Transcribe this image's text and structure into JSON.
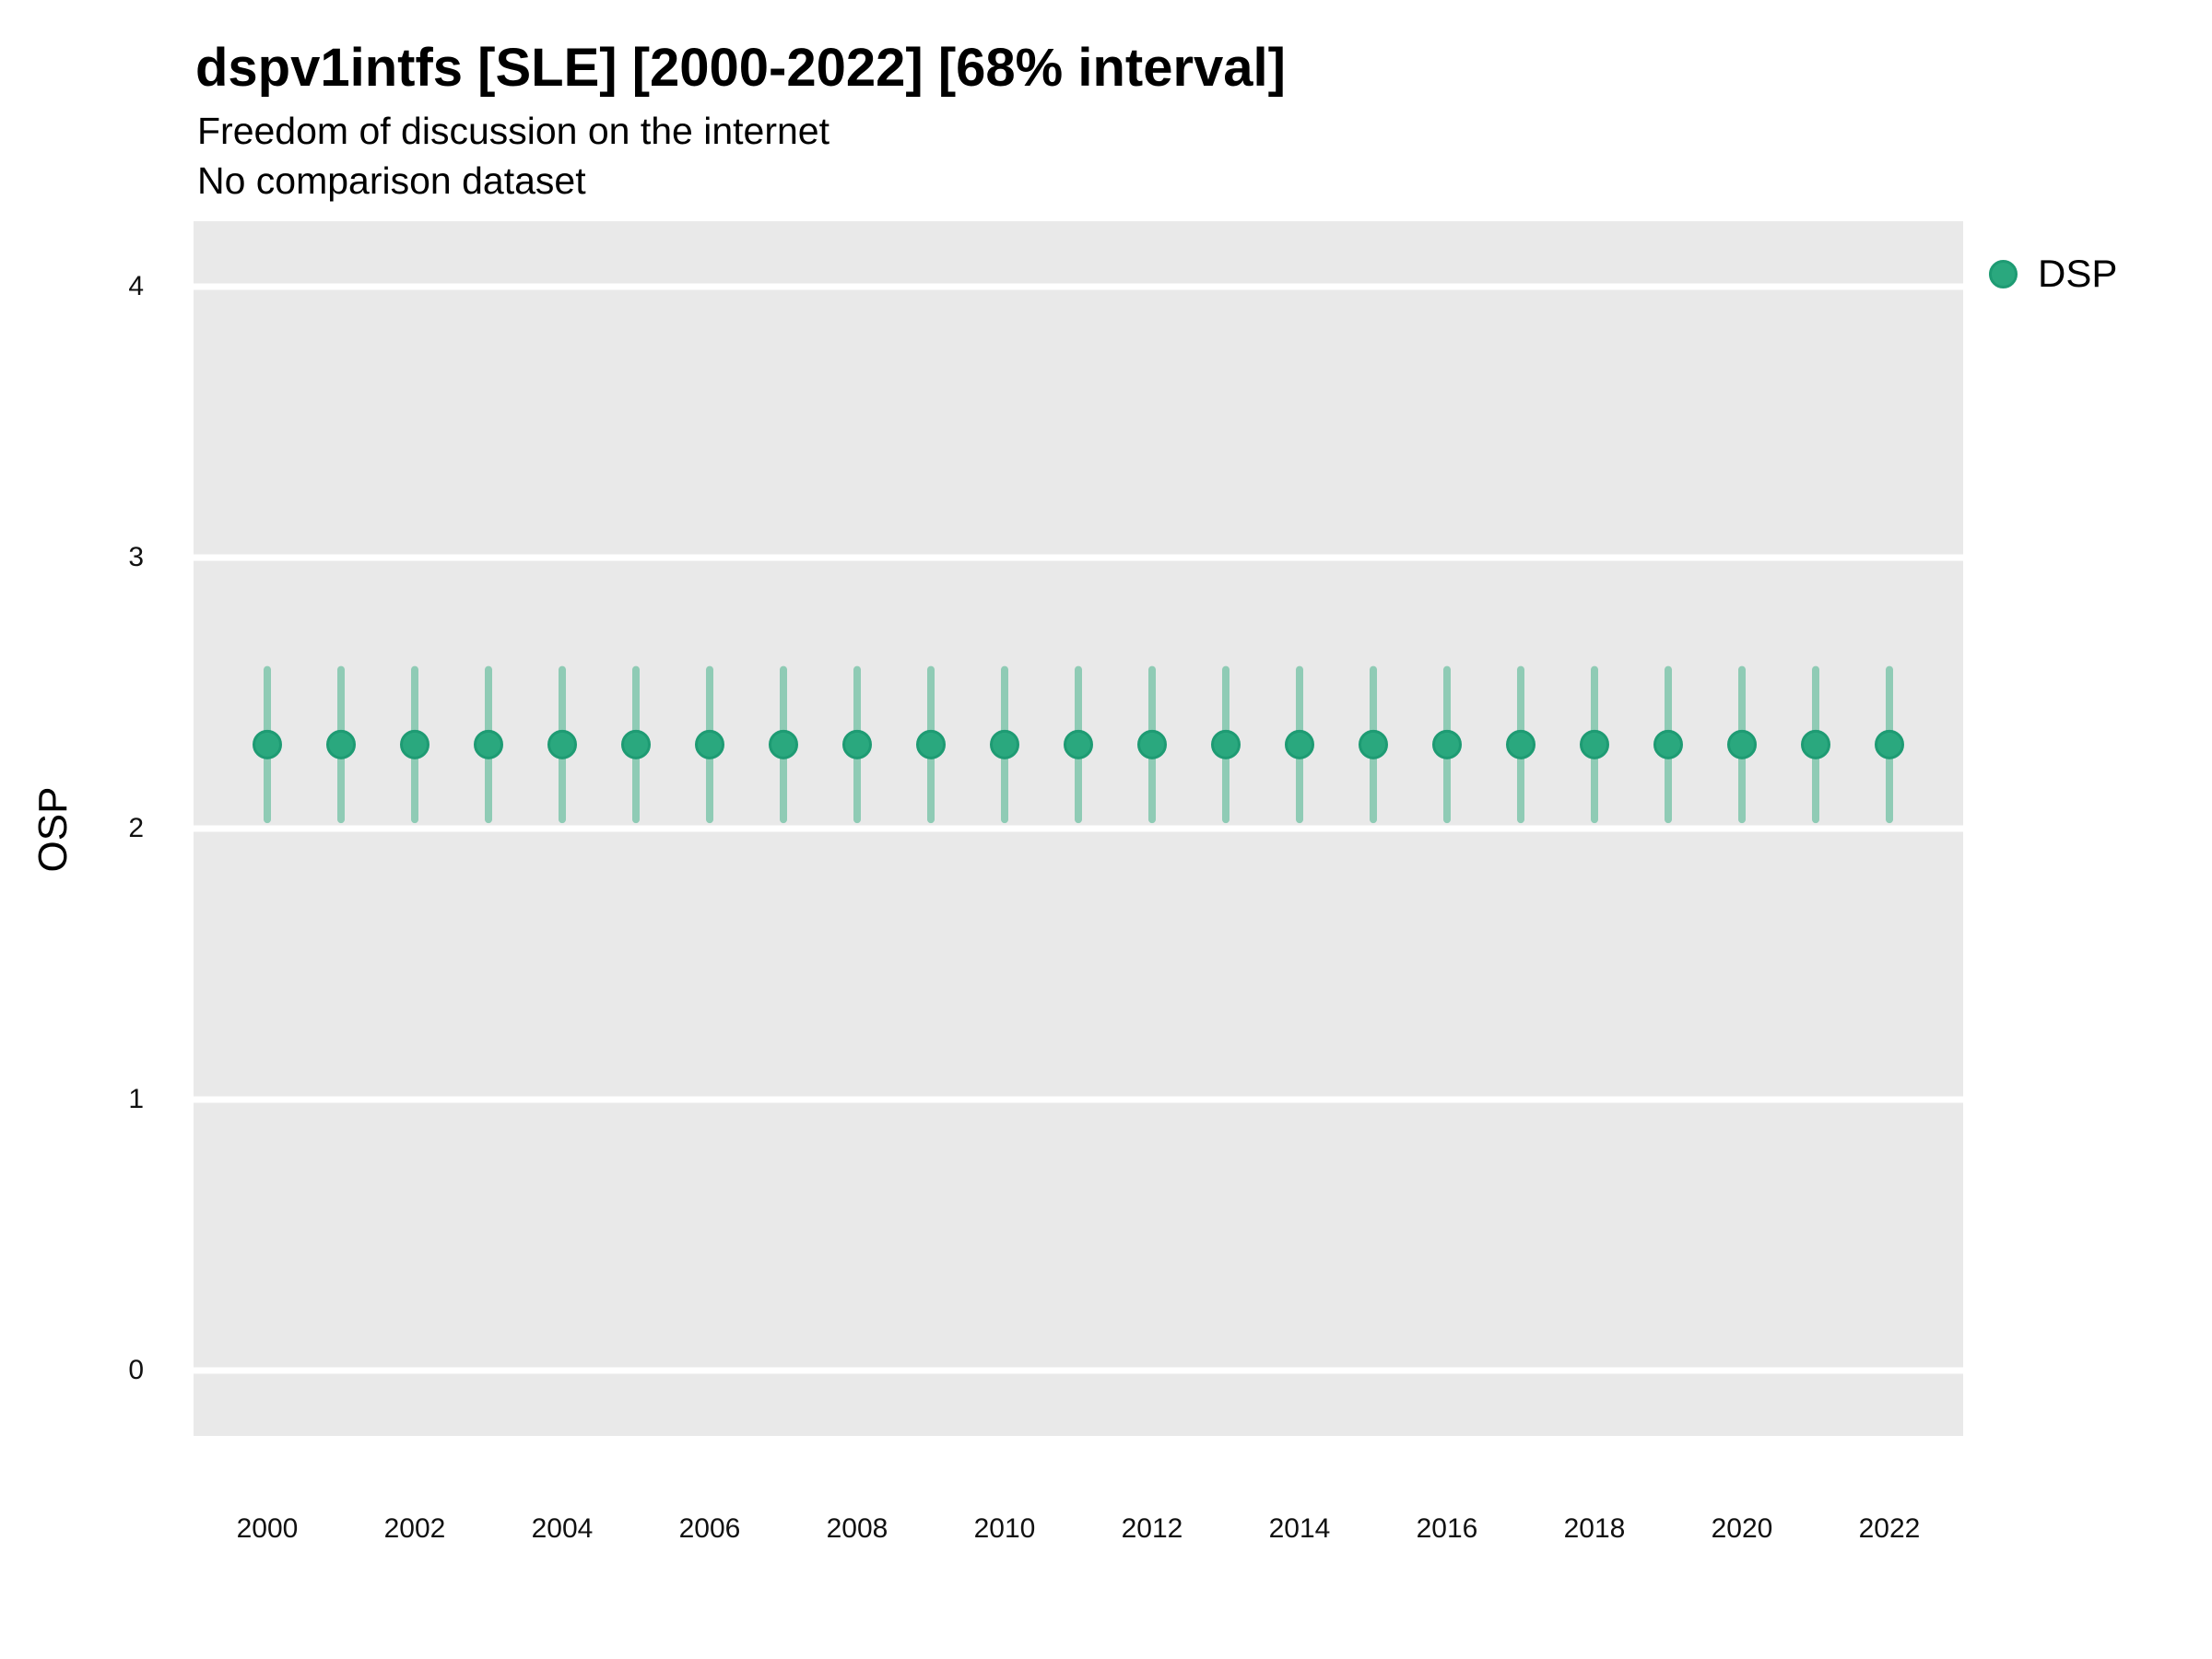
{
  "header": {
    "title": "dspv1intfs [SLE] [2000-2022] [68% interval]",
    "subtitle_line1": "Freedom of discussion on the internet",
    "subtitle_line2": "No comparison dataset"
  },
  "axes": {
    "y_title": "OSP",
    "y_ticks": [
      4,
      3,
      2,
      1,
      0
    ],
    "x_ticks": [
      2000,
      2002,
      2004,
      2006,
      2008,
      2010,
      2012,
      2014,
      2016,
      2018,
      2020,
      2022
    ]
  },
  "legend": {
    "items": [
      {
        "label": "DSP",
        "color": "#2AA87E"
      }
    ]
  },
  "colors": {
    "point_fill": "#2AA87E",
    "point_outline": "#1E9B73",
    "interval_bar": "#8FCBB5",
    "panel_background": "#E9E9E9",
    "gridline": "#FFFFFF"
  },
  "chart_data": {
    "type": "pointrange",
    "title": "dspv1intfs [SLE] [2000-2022] [68% interval]",
    "subtitle": "Freedom of discussion on the internet",
    "note": "No comparison dataset",
    "interval_label": "68% interval",
    "xlabel": "",
    "ylabel": "OSP",
    "ylim": [
      0,
      4
    ],
    "xlim": [
      1999,
      2023
    ],
    "grid": "horizontal-major-only",
    "legend_position": "right-top",
    "series": [
      {
        "name": "DSP",
        "color": "#2AA87E",
        "x": [
          2000,
          2001,
          2002,
          2003,
          2004,
          2005,
          2006,
          2007,
          2008,
          2009,
          2010,
          2011,
          2012,
          2013,
          2014,
          2015,
          2016,
          2017,
          2018,
          2019,
          2020,
          2021,
          2022
        ],
        "est": [
          2.31,
          2.31,
          2.31,
          2.31,
          2.31,
          2.31,
          2.31,
          2.31,
          2.31,
          2.31,
          2.31,
          2.31,
          2.31,
          2.31,
          2.31,
          2.31,
          2.31,
          2.31,
          2.31,
          2.31,
          2.31,
          2.31,
          2.31
        ],
        "lo": [
          2.02,
          2.02,
          2.02,
          2.02,
          2.02,
          2.02,
          2.02,
          2.02,
          2.02,
          2.02,
          2.02,
          2.02,
          2.02,
          2.02,
          2.02,
          2.02,
          2.02,
          2.02,
          2.02,
          2.02,
          2.02,
          2.02,
          2.02
        ],
        "hi": [
          2.6,
          2.6,
          2.6,
          2.6,
          2.6,
          2.6,
          2.6,
          2.6,
          2.6,
          2.6,
          2.6,
          2.6,
          2.6,
          2.6,
          2.6,
          2.6,
          2.6,
          2.6,
          2.6,
          2.6,
          2.6,
          2.6,
          2.6
        ]
      }
    ]
  }
}
